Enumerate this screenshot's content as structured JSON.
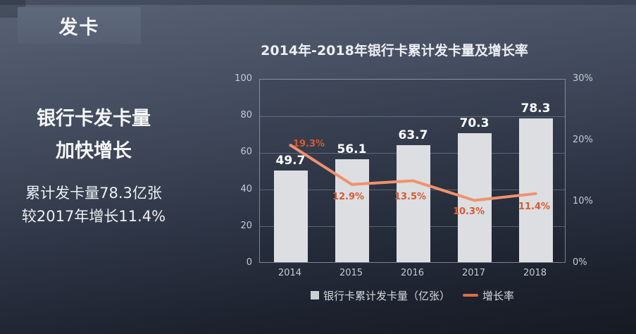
{
  "badge": {
    "label": "发卡"
  },
  "left_panel": {
    "heading": [
      "银行卡发卡量",
      "加快增长"
    ],
    "body": [
      "累计发卡量78.3亿张",
      "较2017年增长11.4%"
    ]
  },
  "colors": {
    "bar_fill": "#dcdee1",
    "line_stroke": "#ef926d",
    "line_label": "#d65b33",
    "legend_bar_swatch": "#cdd0d6",
    "legend_line_swatch": "#dd6e44",
    "bar_value_label": "#ffffff"
  },
  "chart_data": {
    "type": "bar+line",
    "title": "2014年-2018年银行卡累计发卡量及增长率",
    "categories": [
      "2014",
      "2015",
      "2016",
      "2017",
      "2018"
    ],
    "series": [
      {
        "name": "银行卡累计发卡量（亿张）",
        "type": "bar",
        "axis": "left",
        "values": [
          49.7,
          56.1,
          63.7,
          70.3,
          78.3
        ],
        "unit": ""
      },
      {
        "name": "增长率",
        "type": "line",
        "axis": "right",
        "values": [
          19.3,
          12.9,
          13.5,
          10.3,
          11.4
        ],
        "unit": "%",
        "label_offsets": [
          [
            26,
            -1
          ],
          [
            -5,
            18
          ],
          [
            -4,
            23
          ],
          [
            -8,
            17
          ],
          [
            -2,
            19
          ]
        ]
      }
    ],
    "left_axis": {
      "min": 0,
      "max": 100,
      "ticks": [
        0,
        20,
        40,
        60,
        80,
        100
      ],
      "suffix": ""
    },
    "right_axis": {
      "min": 0,
      "max": 30,
      "ticks": [
        0,
        10,
        20,
        30
      ],
      "suffix": "%"
    },
    "grid": true,
    "legend_position": "bottom"
  }
}
